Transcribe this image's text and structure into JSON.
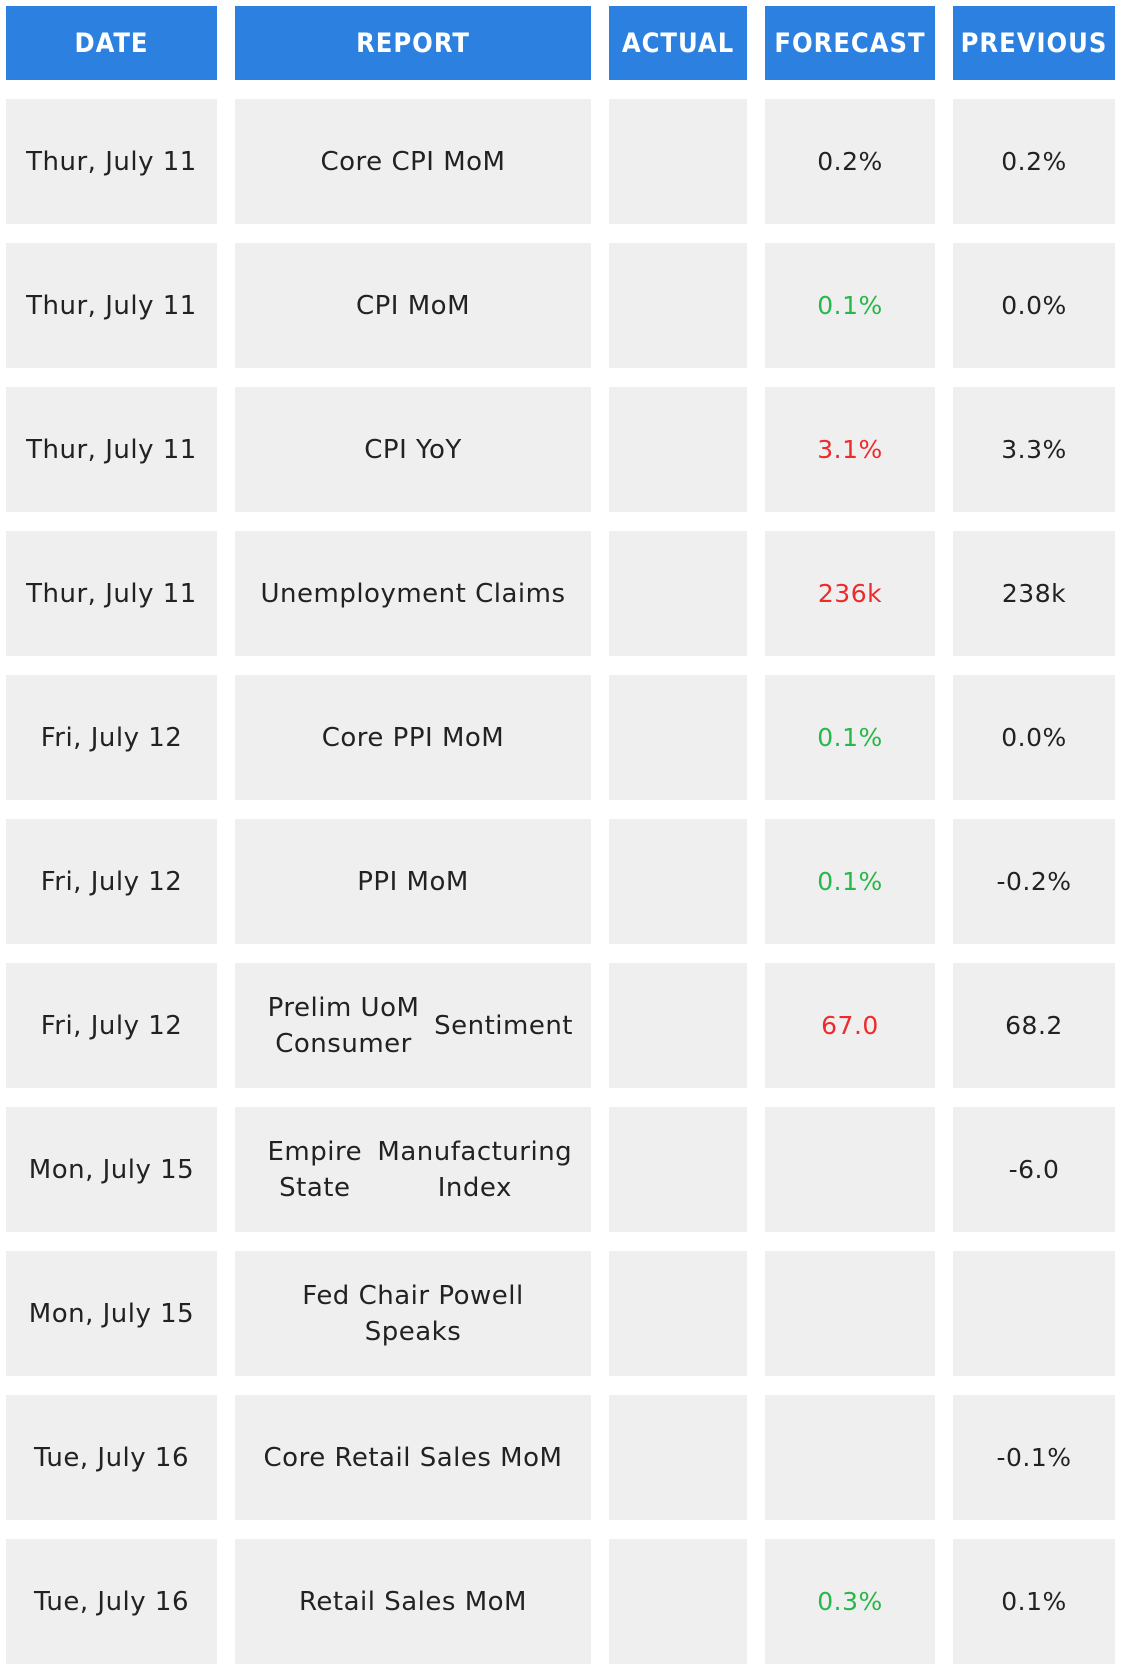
{
  "header": {
    "date": "DATE",
    "report": "REPORT",
    "actual": "ACTUAL",
    "forecast": "FORECAST",
    "previous": "PREVIOUS"
  },
  "colors": {
    "header_bg": "#2b80e0",
    "cell_bg": "#efefef",
    "text_default": "#222222",
    "forecast_green": "#27b84a",
    "forecast_red": "#ee2b2b"
  },
  "rows": [
    {
      "date": "Thur, July 11",
      "report": "Core CPI MoM",
      "actual": "",
      "forecast": "0.2%",
      "forecast_color": "default",
      "previous": "0.2%"
    },
    {
      "date": "Thur, July 11",
      "report": "CPI MoM",
      "actual": "",
      "forecast": "0.1%",
      "forecast_color": "green",
      "previous": "0.0%"
    },
    {
      "date": "Thur, July 11",
      "report": "CPI YoY",
      "actual": "",
      "forecast": "3.1%",
      "forecast_color": "red",
      "previous": "3.3%"
    },
    {
      "date": "Thur, July 11",
      "report": "Unemployment Claims",
      "actual": "",
      "forecast": "236k",
      "forecast_color": "red",
      "previous": "238k"
    },
    {
      "date": "Fri, July 12",
      "report": "Core PPI MoM",
      "actual": "",
      "forecast": "0.1%",
      "forecast_color": "green",
      "previous": "0.0%"
    },
    {
      "date": "Fri, July 12",
      "report": "PPI MoM",
      "actual": "",
      "forecast": "0.1%",
      "forecast_color": "green",
      "previous": "-0.2%"
    },
    {
      "date": "Fri, July 12",
      "report": "Prelim UoM Consumer Sentiment",
      "report_lines": [
        "Prelim UoM Consumer",
        "Sentiment"
      ],
      "actual": "",
      "forecast": "67.0",
      "forecast_color": "red",
      "previous": "68.2"
    },
    {
      "date": "Mon, July 15",
      "report": "Empire State Manufacturing Index",
      "report_lines": [
        "Empire State",
        "Manufacturing Index"
      ],
      "actual": "",
      "forecast": "",
      "forecast_color": "default",
      "previous": "-6.0"
    },
    {
      "date": "Mon, July 15",
      "report": "Fed Chair Powell Speaks",
      "actual": "",
      "forecast": "",
      "forecast_color": "default",
      "previous": ""
    },
    {
      "date": "Tue, July 16",
      "report": "Core Retail Sales MoM",
      "actual": "",
      "forecast": "",
      "forecast_color": "default",
      "previous": "-0.1%"
    },
    {
      "date": "Tue, July 16",
      "report": "Retail Sales MoM",
      "actual": "",
      "forecast": "0.3%",
      "forecast_color": "green",
      "previous": "0.1%"
    }
  ]
}
